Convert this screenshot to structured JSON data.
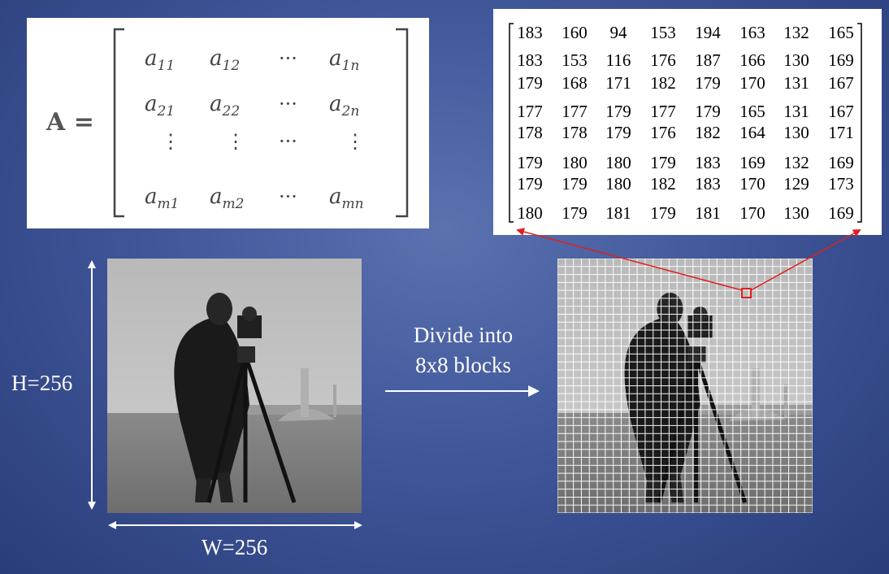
{
  "matrix_a": {
    "lhs": "A =",
    "rows": [
      [
        {
          "v": "a",
          "s": "11"
        },
        {
          "v": "a",
          "s": "12"
        },
        {
          "v": "···",
          "s": ""
        },
        {
          "v": "a",
          "s": "1n"
        }
      ],
      [
        {
          "v": "a",
          "s": "21"
        },
        {
          "v": "a",
          "s": "22"
        },
        {
          "v": "···",
          "s": ""
        },
        {
          "v": "a",
          "s": "2n"
        }
      ],
      [
        {
          "v": "⋮",
          "s": ""
        },
        {
          "v": "⋮",
          "s": ""
        },
        {
          "v": "···",
          "s": ""
        },
        {
          "v": "⋮",
          "s": ""
        }
      ],
      [
        {
          "v": "a",
          "s": "m1"
        },
        {
          "v": "a",
          "s": "m2"
        },
        {
          "v": "···",
          "s": ""
        },
        {
          "v": "a",
          "s": "mn"
        }
      ]
    ]
  },
  "block_values": [
    [
      "183",
      "160",
      "94",
      "153",
      "194",
      "163",
      "132",
      "165"
    ],
    [
      "183",
      "153",
      "116",
      "176",
      "187",
      "166",
      "130",
      "169"
    ],
    [
      "179",
      "168",
      "171",
      "182",
      "179",
      "170",
      "131",
      "167"
    ],
    [
      "177",
      "177",
      "179",
      "177",
      "179",
      "165",
      "131",
      "167"
    ],
    [
      "178",
      "178",
      "179",
      "176",
      "182",
      "164",
      "130",
      "171"
    ],
    [
      "179",
      "180",
      "180",
      "179",
      "183",
      "169",
      "132",
      "169"
    ],
    [
      "179",
      "179",
      "180",
      "182",
      "183",
      "170",
      "129",
      "173"
    ],
    [
      "180",
      "179",
      "181",
      "179",
      "181",
      "170",
      "130",
      "169"
    ]
  ],
  "labels": {
    "height": "H=256",
    "width": "W=256",
    "divide_line1": "Divide into",
    "divide_line2": "8x8 blocks"
  },
  "colors": {
    "highlight": "#e02020",
    "arrow": "#ffffff"
  }
}
